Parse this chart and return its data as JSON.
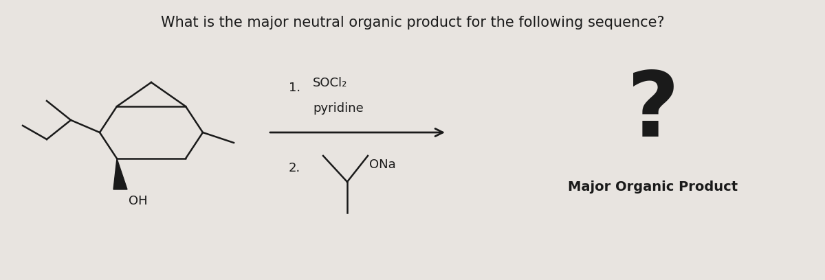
{
  "title": "What is the major neutral organic product for the following sequence?",
  "title_fontsize": 15,
  "background_color": "#e8e4e0",
  "text_color": "#1a1a1a",
  "reagent_line1": "SOCl₂",
  "reagent_label1": "1.",
  "reagent_line2": "pyridine",
  "reagent_label2": "2.",
  "product_label": "Major Organic Product",
  "question_mark": "?",
  "fig_width": 12.0,
  "fig_height": 4.08
}
